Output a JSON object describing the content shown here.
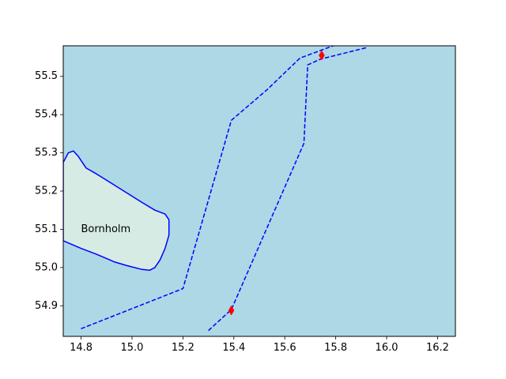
{
  "chart_data": {
    "type": "map",
    "title": "",
    "xlabel": "",
    "ylabel": "",
    "xlim": [
      14.73,
      16.27
    ],
    "ylim": [
      54.82,
      55.58
    ],
    "grid": false,
    "legend": "none",
    "x_ticks": [
      "14.8",
      "15.0",
      "15.2",
      "15.4",
      "15.6",
      "15.8",
      "16.0",
      "16.2"
    ],
    "y_ticks": [
      "54.9",
      "55.0",
      "55.1",
      "55.2",
      "55.3",
      "55.4",
      "55.5"
    ],
    "x_tick_values": [
      14.8,
      15.0,
      15.2,
      15.4,
      15.6,
      15.8,
      16.0,
      16.2
    ],
    "y_tick_values": [
      54.9,
      55.0,
      55.1,
      55.2,
      55.3,
      55.4,
      55.5
    ],
    "colors": {
      "water": "#add8e6",
      "land_fill": "#d6ebe3",
      "outline": "#0000ff",
      "marker": "#ff0000"
    },
    "land": {
      "label": "Bornholm",
      "label_position": [
        14.8,
        55.1
      ],
      "coastline": [
        [
          14.73,
          55.275
        ],
        [
          14.75,
          55.3
        ],
        [
          14.77,
          55.305
        ],
        [
          14.79,
          55.29
        ],
        [
          14.82,
          55.26
        ],
        [
          14.86,
          55.245
        ],
        [
          14.92,
          55.22
        ],
        [
          14.98,
          55.195
        ],
        [
          15.04,
          55.17
        ],
        [
          15.09,
          55.15
        ],
        [
          15.13,
          55.14
        ],
        [
          15.145,
          55.125
        ],
        [
          15.145,
          55.085
        ],
        [
          15.13,
          55.05
        ],
        [
          15.11,
          55.02
        ],
        [
          15.09,
          55.0
        ],
        [
          15.07,
          54.993
        ],
        [
          15.04,
          54.995
        ],
        [
          14.98,
          55.005
        ],
        [
          14.93,
          55.015
        ],
        [
          14.86,
          55.035
        ],
        [
          14.8,
          55.05
        ],
        [
          14.73,
          55.07
        ]
      ]
    },
    "routes": [
      {
        "style": "dashed",
        "points": [
          [
            14.8,
            54.84
          ],
          [
            15.2,
            54.945
          ],
          [
            15.39,
            55.385
          ],
          [
            15.53,
            55.465
          ],
          [
            15.66,
            55.548
          ],
          [
            15.79,
            55.58
          ]
        ]
      },
      {
        "style": "dashed",
        "points": [
          [
            15.3,
            54.835
          ],
          [
            15.39,
            54.89
          ],
          [
            15.675,
            55.325
          ],
          [
            15.69,
            55.53
          ],
          [
            15.74,
            55.545
          ],
          [
            15.92,
            55.575
          ]
        ]
      }
    ],
    "markers": [
      {
        "x": 15.39,
        "y": 54.888
      },
      {
        "x": 15.745,
        "y": 55.555
      }
    ]
  }
}
